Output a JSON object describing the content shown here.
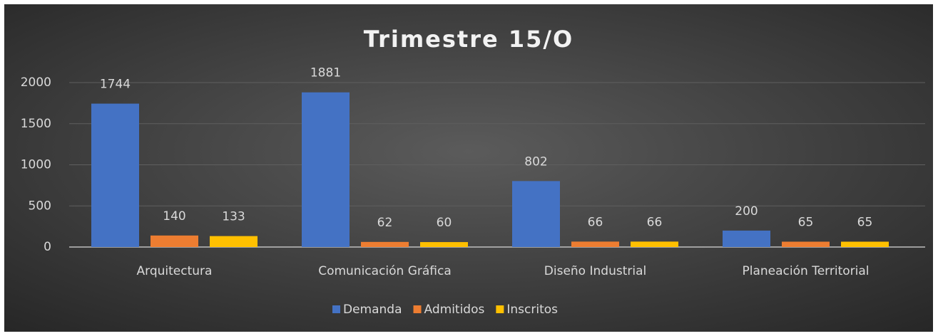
{
  "chart_data": {
    "type": "bar",
    "title": "Trimestre 15/O",
    "categories": [
      "Arquitectura",
      "Comunicación Gráfica",
      "Diseño Industrial",
      "Planeación Territorial"
    ],
    "series": [
      {
        "name": "Demanda",
        "color": "#4472c4",
        "values": [
          1744,
          1881,
          802,
          200
        ]
      },
      {
        "name": "Admitidos",
        "color": "#ed7d31",
        "values": [
          140,
          62,
          66,
          65
        ]
      },
      {
        "name": "Inscritos",
        "color": "#ffc000",
        "values": [
          133,
          60,
          66,
          65
        ]
      }
    ],
    "ylim": [
      0,
      2000
    ],
    "yticks": [
      0,
      500,
      1000,
      1500,
      2000
    ],
    "grid": true,
    "legend": "bottom"
  }
}
